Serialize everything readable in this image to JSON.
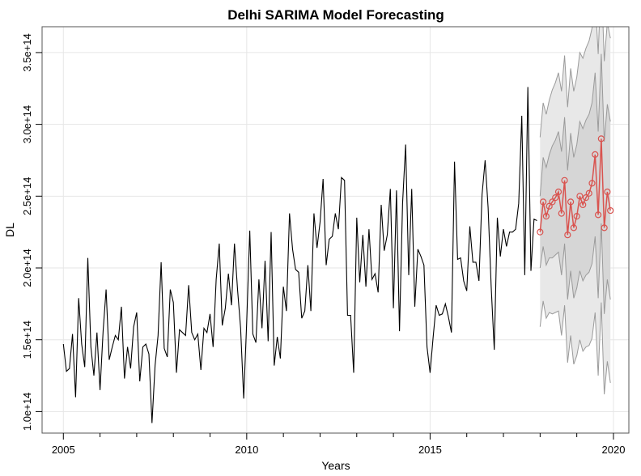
{
  "chart_data": {
    "type": "line",
    "title": "Delhi SARIMA Model Forecasting",
    "xlabel": "Years",
    "ylabel": "DL",
    "xlim": [
      2004.42,
      2020.42
    ],
    "ylim": [
      85000000000000.0,
      368000000000000.0
    ],
    "x_ticks": [
      {
        "value": 2005,
        "label": "2005"
      },
      {
        "value": 2010,
        "label": "2010"
      },
      {
        "value": 2015,
        "label": "2015"
      },
      {
        "value": 2020,
        "label": "2020"
      }
    ],
    "y_ticks": [
      {
        "value": 100000000000000.0,
        "label": "1.0e+14"
      },
      {
        "value": 150000000000000.0,
        "label": "1.5e+14"
      },
      {
        "value": 200000000000000.0,
        "label": "2.0e+14"
      },
      {
        "value": 250000000000000.0,
        "label": "2.5e+14"
      },
      {
        "value": 300000000000000.0,
        "label": "3.0e+14"
      },
      {
        "value": 350000000000000.0,
        "label": "3.5e+14"
      }
    ],
    "grid": true,
    "colors": {
      "history": "#000000",
      "forecast": "#d9534f",
      "band_outer": "#e8e8e8",
      "band_inner": "#d6d6d6",
      "band_edge": "#9a9a9a",
      "grid": "#e6e6e6"
    },
    "history": {
      "start": 2005.0,
      "step": 0.08333,
      "values": [
        1.47,
        1.28,
        1.3,
        1.54,
        1.1,
        1.79,
        1.47,
        1.31,
        2.07,
        1.45,
        1.25,
        1.55,
        1.15,
        1.56,
        1.85,
        1.36,
        1.45,
        1.53,
        1.5,
        1.73,
        1.23,
        1.45,
        1.3,
        1.59,
        1.69,
        1.21,
        1.45,
        1.47,
        1.4,
        0.92,
        1.32,
        1.53,
        2.04,
        1.44,
        1.38,
        1.85,
        1.76,
        1.27,
        1.57,
        1.55,
        1.53,
        1.88,
        1.55,
        1.5,
        1.54,
        1.29,
        1.58,
        1.55,
        1.68,
        1.45,
        1.92,
        2.17,
        1.6,
        1.72,
        1.96,
        1.74,
        2.17,
        1.85,
        1.58,
        1.09,
        1.62,
        2.26,
        1.54,
        1.48,
        1.92,
        1.58,
        2.05,
        1.49,
        2.25,
        1.32,
        1.52,
        1.37,
        1.87,
        1.7,
        2.38,
        2.13,
        1.99,
        1.97,
        1.65,
        1.7,
        2.02,
        1.7,
        2.38,
        2.14,
        2.32,
        2.62,
        2.02,
        2.2,
        2.22,
        2.38,
        2.27,
        2.63,
        2.61,
        1.67,
        1.67,
        1.27,
        2.35,
        1.9,
        2.23,
        1.87,
        2.27,
        1.92,
        1.96,
        1.83,
        2.44,
        2.12,
        2.23,
        2.55,
        1.72,
        2.54,
        1.56,
        2.45,
        2.86,
        1.95,
        2.55,
        1.73,
        2.13,
        2.08,
        2.02,
        1.45,
        1.27,
        1.52,
        1.74,
        1.67,
        1.68,
        1.75,
        1.66,
        1.55,
        2.74,
        2.06,
        2.07,
        1.91,
        1.84,
        2.29,
        2.04,
        2.04,
        1.91,
        2.51,
        2.75,
        2.42,
        1.87,
        1.43,
        2.35,
        2.08,
        2.27,
        2.15,
        2.25,
        2.25,
        2.27,
        2.45,
        3.06,
        1.95,
        3.26,
        1.98,
        2.34,
        2.33
      ]
    },
    "forecast": {
      "start": 2018.0,
      "step": 0.08333,
      "mean": [
        2.25,
        2.46,
        2.36,
        2.43,
        2.46,
        2.49,
        2.53,
        2.38,
        2.61,
        2.23,
        2.46,
        2.28,
        2.36,
        2.5,
        2.44,
        2.49,
        2.52,
        2.59,
        2.79,
        2.37,
        2.9,
        2.28,
        2.53,
        2.4
      ],
      "lower80": [
        2.0,
        2.15,
        2.02,
        2.07,
        2.07,
        2.09,
        2.11,
        1.95,
        2.17,
        1.78,
        1.98,
        1.79,
        1.86,
        1.98,
        1.91,
        1.95,
        1.97,
        2.03,
        2.22,
        1.79,
        2.31,
        1.68,
        1.92,
        1.78
      ],
      "upper80": [
        2.5,
        2.77,
        2.7,
        2.79,
        2.85,
        2.89,
        2.95,
        2.81,
        3.05,
        2.68,
        2.94,
        2.77,
        2.86,
        3.02,
        2.97,
        3.03,
        3.07,
        3.15,
        3.36,
        2.95,
        3.49,
        2.88,
        3.14,
        3.02
      ],
      "lower95": [
        1.59,
        1.77,
        1.65,
        1.69,
        1.68,
        1.69,
        1.7,
        1.53,
        1.74,
        1.34,
        1.53,
        1.33,
        1.39,
        1.5,
        1.42,
        1.45,
        1.46,
        1.51,
        1.69,
        1.25,
        1.76,
        1.12,
        1.35,
        1.2
      ],
      "upper95": [
        2.91,
        3.15,
        3.07,
        3.17,
        3.24,
        3.29,
        3.36,
        3.23,
        3.48,
        3.12,
        3.39,
        3.23,
        3.33,
        3.5,
        3.46,
        3.53,
        3.58,
        3.67,
        3.89,
        3.49,
        4.04,
        3.44,
        3.71,
        3.6
      ]
    },
    "value_unit_multiplier": 100000000000000.0
  }
}
